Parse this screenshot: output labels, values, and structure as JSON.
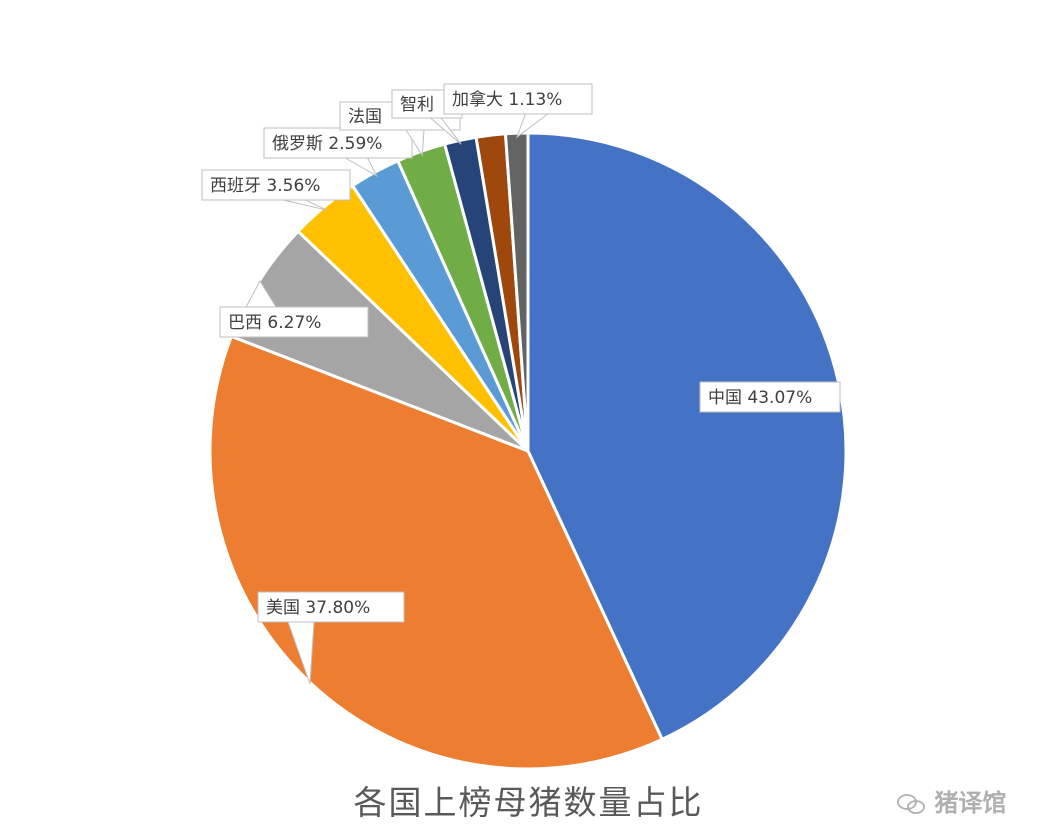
{
  "chart_data": {
    "type": "pie",
    "title": "各国上榜母猪数量占比",
    "slices": [
      {
        "name": "中国",
        "value": 43.07,
        "label": "中国 43.07%",
        "color": "#4472C4"
      },
      {
        "name": "美国",
        "value": 37.8,
        "label": "美国 37.80%",
        "color": "#ED7D31"
      },
      {
        "name": "巴西",
        "value": 6.27,
        "label": "巴西 6.27%",
        "color": "#A5A5A5"
      },
      {
        "name": "西班牙",
        "value": 3.56,
        "label": "西班牙 3.56%",
        "color": "#FFC000"
      },
      {
        "name": "俄罗斯",
        "value": 2.59,
        "label": "俄罗斯 2.59%",
        "color": "#5B9BD5"
      },
      {
        "name": "法国",
        "value": 2.49,
        "label": "法国",
        "color": "#70AD47"
      },
      {
        "name": "智利",
        "value": 1.61,
        "label": "智利",
        "color": "#264478"
      },
      {
        "name": "",
        "value": 1.48,
        "label": "",
        "color": "#9E480E"
      },
      {
        "name": "加拿大",
        "value": 1.13,
        "label": "加拿大 1.13%",
        "color": "#636363"
      }
    ]
  },
  "watermark": {
    "text": "猪译馆",
    "icon": "wechat-icon"
  }
}
